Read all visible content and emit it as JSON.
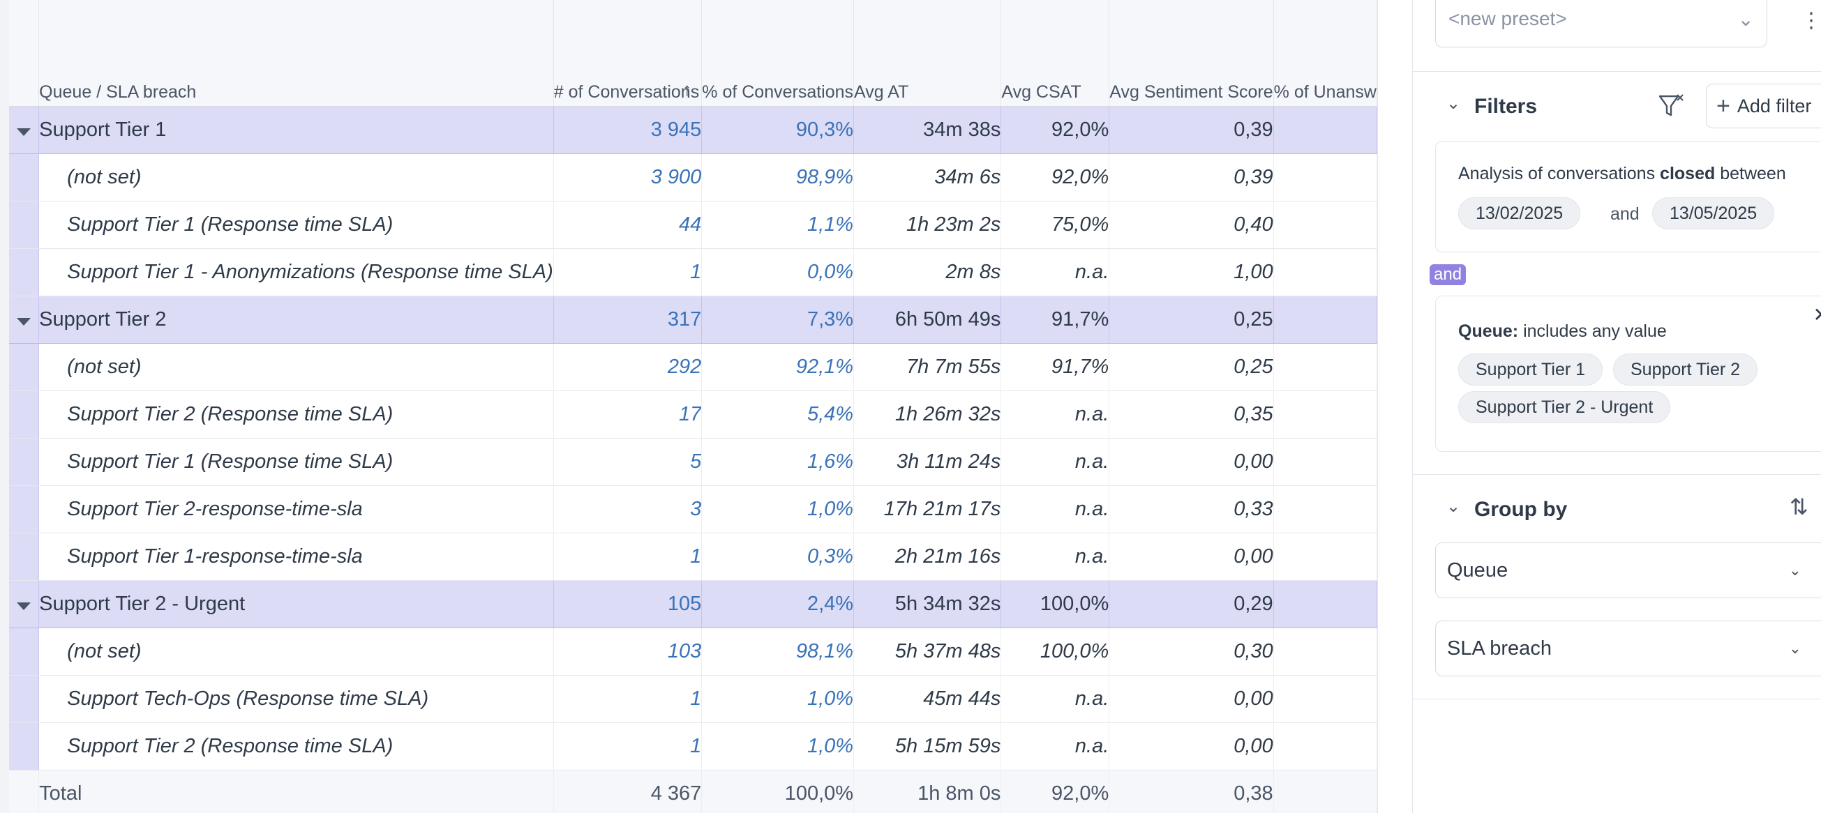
{
  "table": {
    "columns": [
      {
        "label": "Queue / SLA breach"
      },
      {
        "label": "# of Conversations"
      },
      {
        "label": "% of Conversations"
      },
      {
        "label": "Avg AT"
      },
      {
        "label": "Avg CSAT"
      },
      {
        "label": "Avg Sentiment Score"
      },
      {
        "label": "% of Unansw"
      }
    ],
    "sort_icon": "arrow-up-icon",
    "rows": [
      {
        "type": "group",
        "name": "Support Tier 1",
        "count": "3 945",
        "pct": "90,3%",
        "at": "34m 38s",
        "csat": "92,0%",
        "sent": "0,39"
      },
      {
        "type": "child",
        "name": "(not set)",
        "count": "3 900",
        "pct": "98,9%",
        "at": "34m 6s",
        "csat": "92,0%",
        "sent": "0,39"
      },
      {
        "type": "child",
        "name": "Support Tier 1 (Response time SLA)",
        "count": "44",
        "pct": "1,1%",
        "at": "1h 23m 2s",
        "csat": "75,0%",
        "sent": "0,40"
      },
      {
        "type": "child",
        "name": "Support Tier 1 - Anonymizations (Response time SLA)",
        "count": "1",
        "pct": "0,0%",
        "at": "2m 8s",
        "csat": "n.a.",
        "sent": "1,00"
      },
      {
        "type": "group",
        "name": "Support Tier 2",
        "count": "317",
        "pct": "7,3%",
        "at": "6h 50m 49s",
        "csat": "91,7%",
        "sent": "0,25"
      },
      {
        "type": "child",
        "name": "(not set)",
        "count": "292",
        "pct": "92,1%",
        "at": "7h 7m 55s",
        "csat": "91,7%",
        "sent": "0,25"
      },
      {
        "type": "child",
        "name": "Support Tier 2 (Response time SLA)",
        "count": "17",
        "pct": "5,4%",
        "at": "1h 26m 32s",
        "csat": "n.a.",
        "sent": "0,35"
      },
      {
        "type": "child",
        "name": "Support Tier 1 (Response time SLA)",
        "count": "5",
        "pct": "1,6%",
        "at": "3h 11m 24s",
        "csat": "n.a.",
        "sent": "0,00"
      },
      {
        "type": "child",
        "name": "Support Tier 2-response-time-sla",
        "count": "3",
        "pct": "1,0%",
        "at": "17h 21m 17s",
        "csat": "n.a.",
        "sent": "0,33"
      },
      {
        "type": "child",
        "name": "Support Tier 1-response-time-sla",
        "count": "1",
        "pct": "0,3%",
        "at": "2h 21m 16s",
        "csat": "n.a.",
        "sent": "0,00"
      },
      {
        "type": "group",
        "name": "Support Tier 2 - Urgent",
        "count": "105",
        "pct": "2,4%",
        "at": "5h 34m 32s",
        "csat": "100,0%",
        "sent": "0,29"
      },
      {
        "type": "child",
        "name": "(not set)",
        "count": "103",
        "pct": "98,1%",
        "at": "5h 37m 48s",
        "csat": "100,0%",
        "sent": "0,30"
      },
      {
        "type": "child",
        "name": "Support Tech-Ops (Response time SLA)",
        "count": "1",
        "pct": "1,0%",
        "at": "45m 44s",
        "csat": "n.a.",
        "sent": "0,00"
      },
      {
        "type": "child",
        "name": "Support Tier 2 (Response time SLA)",
        "count": "1",
        "pct": "1,0%",
        "at": "5h 15m 59s",
        "csat": "n.a.",
        "sent": "0,00"
      },
      {
        "type": "total",
        "name": "Total",
        "count": "4 367",
        "pct": "100,0%",
        "at": "1h 8m 0s",
        "csat": "92,0%",
        "sent": "0,38"
      }
    ]
  },
  "panel": {
    "preset_placeholder": "<new preset>",
    "filters": {
      "title": "Filters",
      "add_filter_label": "Add filter",
      "date_card": {
        "prefix": "Analysis of conversations",
        "bold": "closed",
        "suffix": "between",
        "start": "13/02/2025",
        "and": "and",
        "end": "13/05/2025"
      },
      "and_badge": "and",
      "queue_card": {
        "field": "Queue:",
        "condition": "includes any value",
        "chips": [
          "Support Tier 1",
          "Support Tier 2",
          "Support Tier 2 - Urgent"
        ]
      }
    },
    "group_by": {
      "title": "Group by",
      "selects": [
        "Queue",
        "SLA breach"
      ]
    }
  }
}
